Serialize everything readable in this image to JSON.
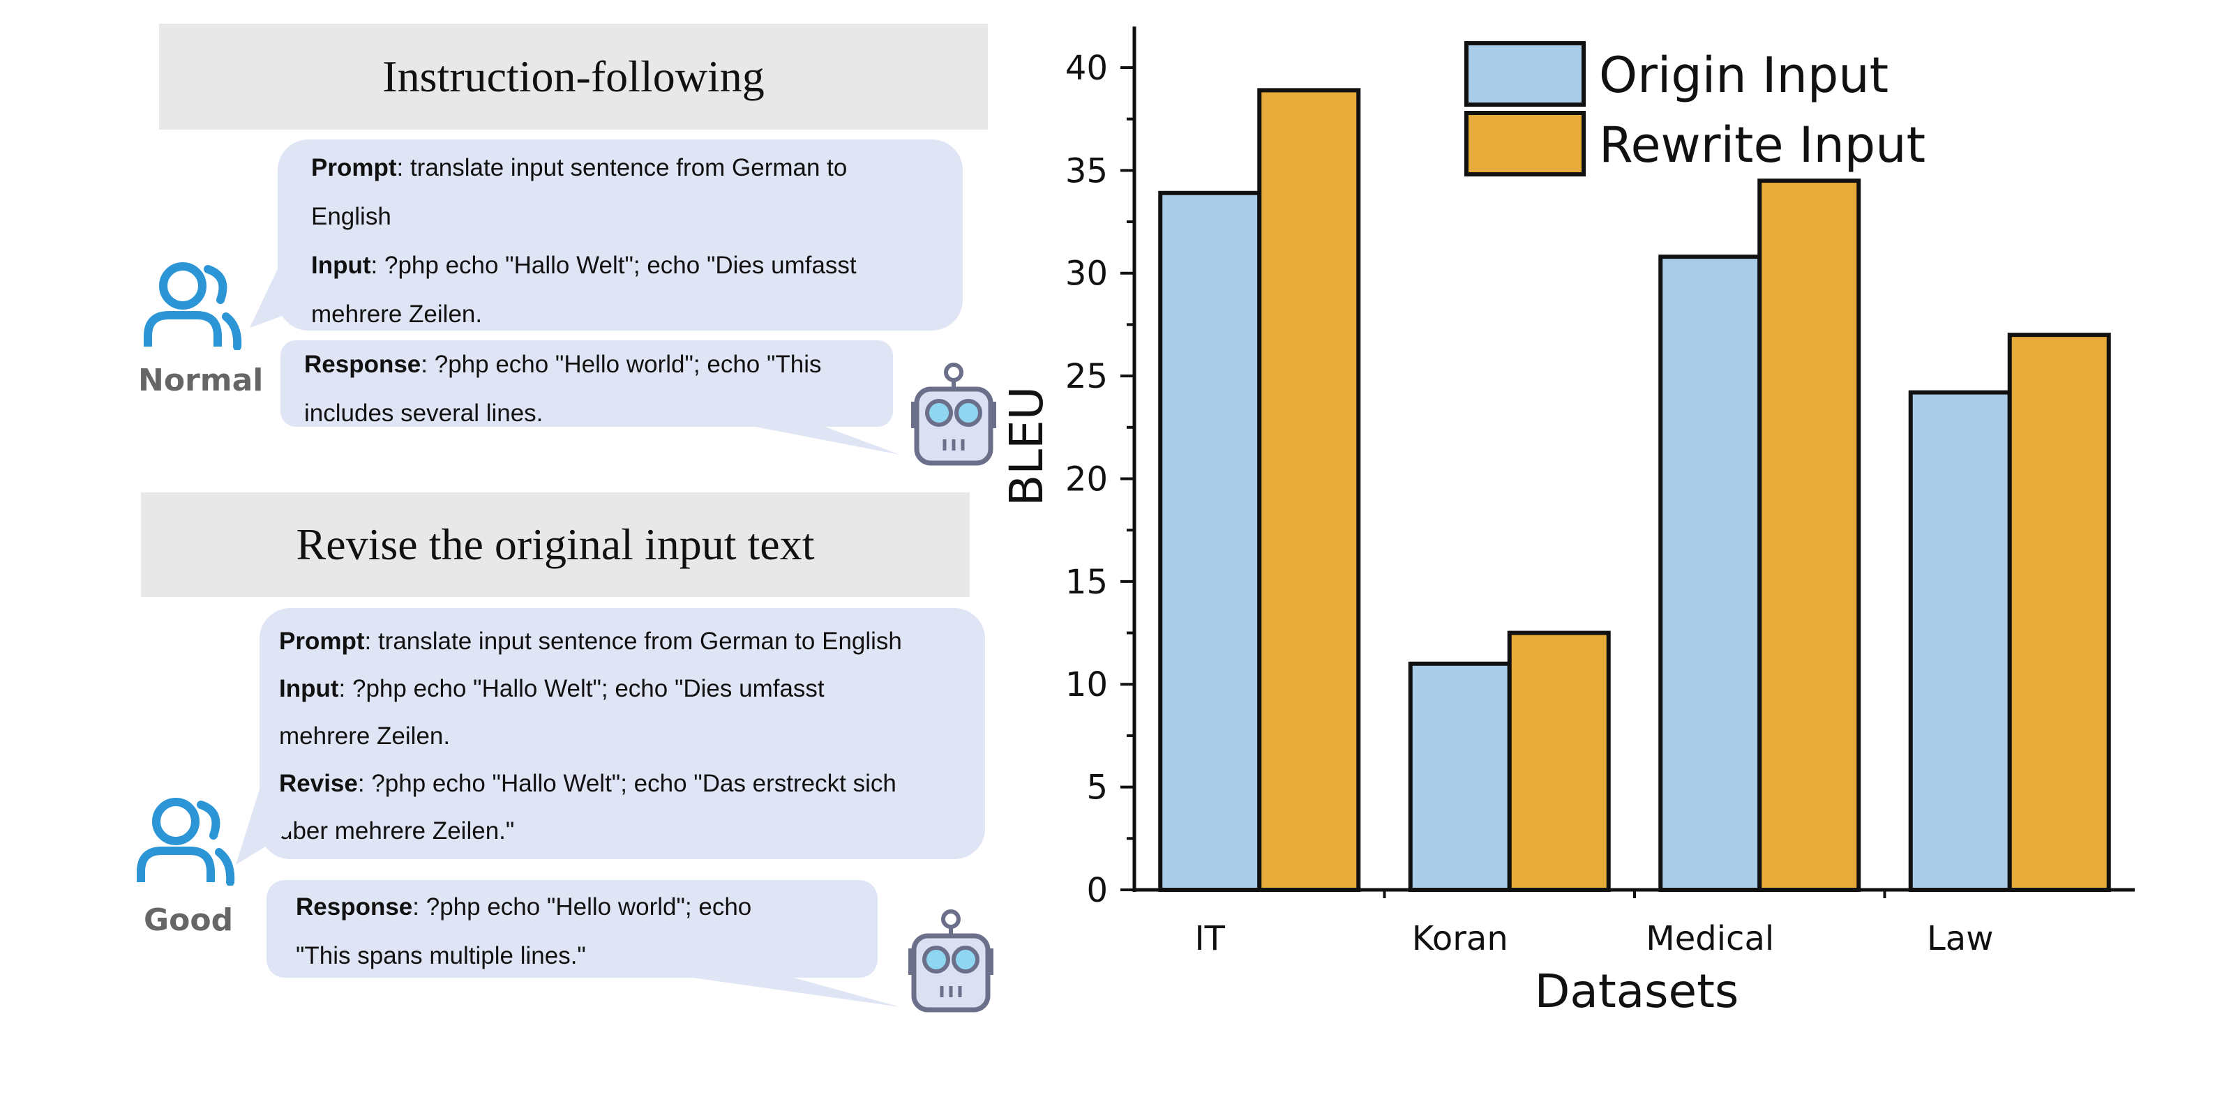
{
  "panels": {
    "top": {
      "title": "Instruction-following",
      "user_label": "Normal",
      "user_bubble": {
        "prompt_key": "Prompt",
        "prompt_lines": [
          ": translate input sentence from German to",
          "English"
        ],
        "input_key": "Input",
        "input_lines": [
          ": ?php echo \"Hallo Welt\"; echo \"Dies umfasst",
          "mehrere Zeilen."
        ]
      },
      "bot_bubble": {
        "response_key": "Response",
        "response_lines": [
          ": ?php echo \"Hello world\"; echo \"This",
          "includes several lines."
        ]
      }
    },
    "bottom": {
      "title": "Revise the original input text",
      "user_label": "Good",
      "user_bubble": {
        "prompt_key": "Prompt",
        "prompt_lines": [
          ": translate input sentence from German to English"
        ],
        "input_key": "Input",
        "input_lines": [
          ": ?php echo \"Hallo Welt\"; echo \"Dies umfasst",
          "mehrere Zeilen."
        ],
        "revise_key": "Revise",
        "revise_lines": [
          ": ?php echo \"Hallo Welt\"; echo \"Das erstreckt sich",
          "über mehrere Zeilen.\""
        ]
      },
      "bot_bubble": {
        "response_key": "Response",
        "response_lines": [
          ": ?php echo \"Hello world\"; echo",
          "\"This spans multiple lines.\""
        ]
      }
    }
  },
  "icons": {
    "user": "users-icon",
    "bot": "robot-icon",
    "user_color": "#2b95d6",
    "bot_color": "#6b6f8a"
  },
  "chart_data": {
    "type": "bar",
    "categories": [
      "IT",
      "Koran",
      "Medical",
      "Law"
    ],
    "series": [
      {
        "name": "Origin Input",
        "values": [
          33.9,
          11.0,
          30.8,
          24.2
        ],
        "color": "#a9cde8"
      },
      {
        "name": "Rewrite Input",
        "values": [
          38.9,
          12.5,
          34.5,
          27.0
        ],
        "color": "#e6ab39"
      }
    ],
    "xlabel": "Datasets",
    "ylabel": "BLEU",
    "ylim": [
      0,
      42
    ],
    "yticks": [
      0,
      5,
      10,
      15,
      20,
      25,
      30,
      35,
      40
    ],
    "legend_position": "top",
    "grid": false
  }
}
